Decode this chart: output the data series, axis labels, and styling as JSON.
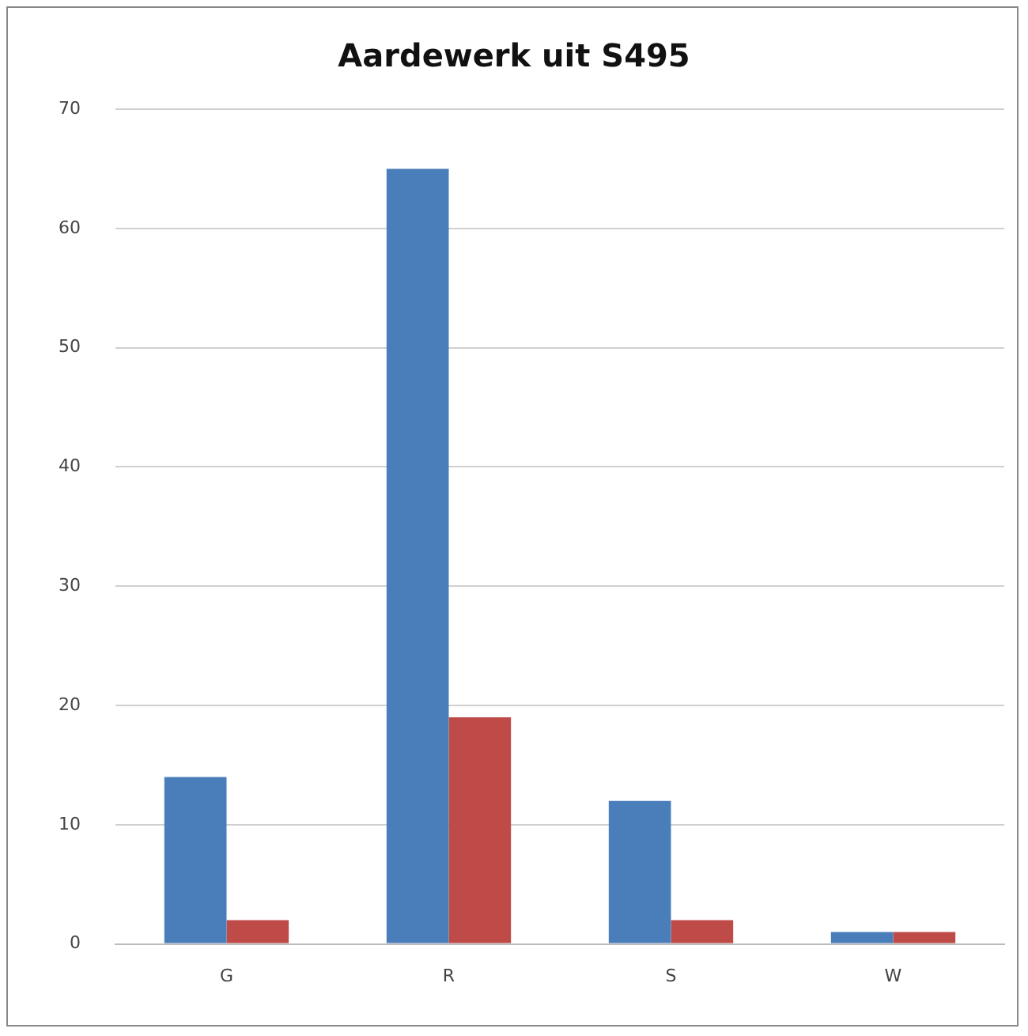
{
  "chart_data": {
    "type": "bar",
    "title": "Aardewerk uit S495",
    "categories": [
      "G",
      "R",
      "S",
      "W"
    ],
    "series": [
      {
        "color": "#4a7ebb",
        "values": [
          14,
          65,
          12,
          1
        ]
      },
      {
        "color": "#be4b48",
        "values": [
          2,
          19,
          2,
          1
        ]
      }
    ],
    "ylim": [
      0,
      70
    ],
    "yticks": [
      0,
      10,
      20,
      30,
      40,
      50,
      60,
      70
    ],
    "grid": "y",
    "legend": false
  }
}
